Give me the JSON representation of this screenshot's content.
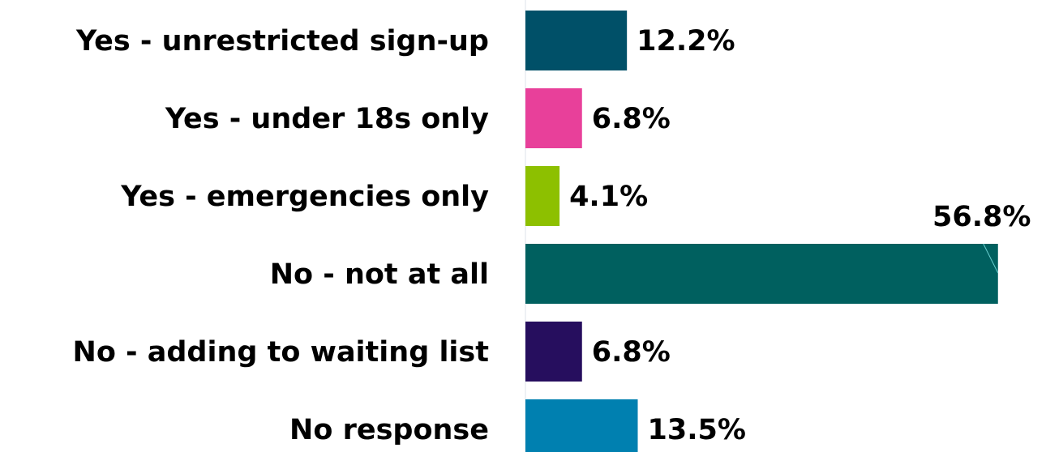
{
  "chart_data": {
    "type": "bar",
    "orientation": "horizontal",
    "categories": [
      "Yes - unrestricted sign-up",
      "Yes - under 18s only",
      "Yes - emergencies only",
      "No - not at all",
      "No - adding to waiting list",
      "No response"
    ],
    "values": [
      12.2,
      6.8,
      4.1,
      56.8,
      6.8,
      13.5
    ],
    "value_labels": [
      "12.2%",
      "6.8%",
      "4.1%",
      "56.8%",
      "6.8%",
      "13.5%"
    ],
    "colors": [
      "#005068",
      "#e8409a",
      "#8dc000",
      "#00605f",
      "#260e5e",
      "#0080b0"
    ]
  }
}
